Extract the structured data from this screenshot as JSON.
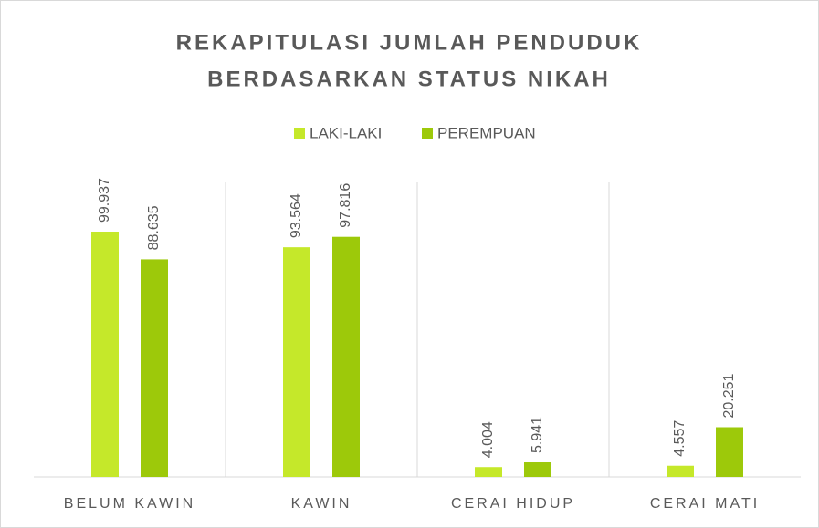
{
  "chart_data": {
    "type": "bar",
    "title": [
      "REKAPITULASI JUMLAH PENDUDUK",
      "BERDASARKAN STATUS NIKAH"
    ],
    "categories": [
      "BELUM KAWIN",
      "KAWIN",
      "CERAI HIDUP",
      "CERAI MATI"
    ],
    "series": [
      {
        "name": "LAKI-LAKI",
        "color": "#c5e82a",
        "values": [
          99937,
          93564,
          4004,
          4557
        ],
        "value_labels": [
          "99.937",
          "93.564",
          "4.004",
          "4.557"
        ]
      },
      {
        "name": "PEREMPUAN",
        "color": "#9dc90a",
        "values": [
          88635,
          97816,
          5941,
          20251
        ],
        "value_labels": [
          "88.635",
          "97.816",
          "5.941",
          "20.251"
        ]
      }
    ],
    "ylim": [
      0,
      120000
    ],
    "legend": "top"
  }
}
